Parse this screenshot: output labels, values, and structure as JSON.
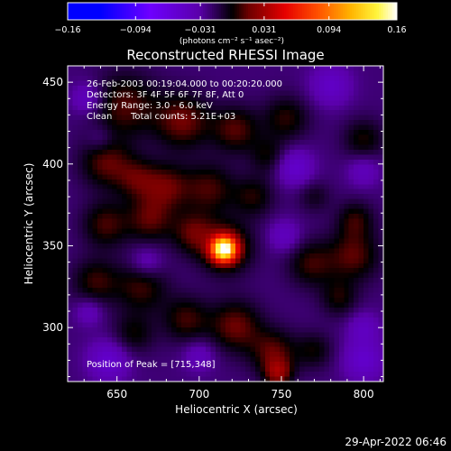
{
  "chart_data": {
    "type": "heatmap",
    "title": "Reconstructed RHESSI Image",
    "xlabel": "Heliocentric X (arcsec)",
    "ylabel": "Heliocentric Y (arcsec)",
    "x_range": [
      620,
      812
    ],
    "y_range": [
      267,
      460
    ],
    "x_ticks": [
      650,
      700,
      750,
      800
    ],
    "y_ticks": [
      300,
      350,
      400,
      450
    ],
    "colorbar": {
      "colormap": "IDL color table 5 (STD GAMMA-II)",
      "range": [
        -0.16,
        0.16
      ],
      "tick_values": [
        -0.16,
        -0.094,
        -0.031,
        0.031,
        0.094,
        0.16
      ],
      "tick_labels": [
        "−0.16",
        "−0.094",
        "−0.031",
        "0.031",
        "0.094",
        "0.16"
      ],
      "unit_label": "(photons cm⁻² s⁻¹ asec⁻²)"
    },
    "annotations": {
      "time_line": "26-Feb-2003 00:19:04.000 to 00:20:20.000",
      "detectors_line": "Detectors: 3F 4F 5F 6F 7F 8F, Att 0",
      "energy_line": "Energy Range: 3.0 - 6.0 keV",
      "clean_label": "Clean",
      "counts_line": "Total counts: 5.21E+03",
      "peak_line": "Position of Peak = [715,348]"
    },
    "peak_position": [
      715,
      348
    ],
    "peak_value": 0.16,
    "emission_components": [
      {
        "x": 715,
        "y": 348,
        "sigma": 5,
        "value": 0.16
      },
      {
        "x": 716,
        "y": 349,
        "sigma": 11,
        "value": 0.045
      },
      {
        "x": 655,
        "y": 436,
        "sigma": 14,
        "value": 0.033
      },
      {
        "x": 690,
        "y": 426,
        "sigma": 12,
        "value": 0.038
      },
      {
        "x": 722,
        "y": 421,
        "sigma": 10,
        "value": 0.033
      },
      {
        "x": 753,
        "y": 428,
        "sigma": 10,
        "value": 0.027
      },
      {
        "x": 643,
        "y": 401,
        "sigma": 11,
        "value": 0.034
      },
      {
        "x": 662,
        "y": 391,
        "sigma": 9,
        "value": 0.028
      },
      {
        "x": 680,
        "y": 386,
        "sigma": 10,
        "value": 0.034
      },
      {
        "x": 706,
        "y": 385,
        "sigma": 11,
        "value": 0.031
      },
      {
        "x": 733,
        "y": 380,
        "sigma": 9,
        "value": 0.025
      },
      {
        "x": 643,
        "y": 363,
        "sigma": 10,
        "value": 0.031
      },
      {
        "x": 670,
        "y": 366,
        "sigma": 10,
        "value": 0.033
      },
      {
        "x": 696,
        "y": 358,
        "sigma": 9,
        "value": 0.032
      },
      {
        "x": 637,
        "y": 328,
        "sigma": 10,
        "value": 0.029
      },
      {
        "x": 665,
        "y": 325,
        "sigma": 11,
        "value": 0.03
      },
      {
        "x": 660,
        "y": 296,
        "sigma": 9,
        "value": 0.023
      },
      {
        "x": 692,
        "y": 305,
        "sigma": 10,
        "value": 0.03
      },
      {
        "x": 722,
        "y": 301,
        "sigma": 11,
        "value": 0.037
      },
      {
        "x": 745,
        "y": 285,
        "sigma": 10,
        "value": 0.034
      },
      {
        "x": 748,
        "y": 272,
        "sigma": 6,
        "value": 0.04
      },
      {
        "x": 770,
        "y": 286,
        "sigma": 8,
        "value": 0.022
      },
      {
        "x": 768,
        "y": 339,
        "sigma": 10,
        "value": 0.029
      },
      {
        "x": 794,
        "y": 344,
        "sigma": 11,
        "value": 0.034
      },
      {
        "x": 785,
        "y": 318,
        "sigma": 8,
        "value": 0.024
      },
      {
        "x": 795,
        "y": 366,
        "sigma": 8,
        "value": 0.026
      },
      {
        "x": 800,
        "y": 415,
        "sigma": 9,
        "value": 0.025
      },
      {
        "x": 742,
        "y": 405,
        "sigma": 8,
        "value": 0.022
      },
      {
        "x": 770,
        "y": 380,
        "sigma": 7,
        "value": 0.017
      },
      {
        "x": 632,
        "y": 440,
        "sigma": 7,
        "value": -0.025
      },
      {
        "x": 758,
        "y": 398,
        "sigma": 8,
        "value": -0.03
      },
      {
        "x": 780,
        "y": 448,
        "sigma": 9,
        "value": -0.025
      },
      {
        "x": 800,
        "y": 396,
        "sigma": 7,
        "value": -0.02
      },
      {
        "x": 752,
        "y": 356,
        "sigma": 7,
        "value": -0.022
      },
      {
        "x": 668,
        "y": 340,
        "sigma": 7,
        "value": -0.022
      },
      {
        "x": 633,
        "y": 310,
        "sigma": 6,
        "value": -0.02
      },
      {
        "x": 645,
        "y": 280,
        "sigma": 9,
        "value": -0.03
      },
      {
        "x": 700,
        "y": 283,
        "sigma": 7,
        "value": -0.02
      },
      {
        "x": 800,
        "y": 280,
        "sigma": 9,
        "value": -0.028
      },
      {
        "x": 800,
        "y": 300,
        "sigma": 7,
        "value": -0.02
      },
      {
        "x": 640,
        "y": 415,
        "sigma": 6,
        "value": -0.015
      }
    ]
  },
  "footer": {
    "date_stamp": "29-Apr-2022 06:46"
  }
}
